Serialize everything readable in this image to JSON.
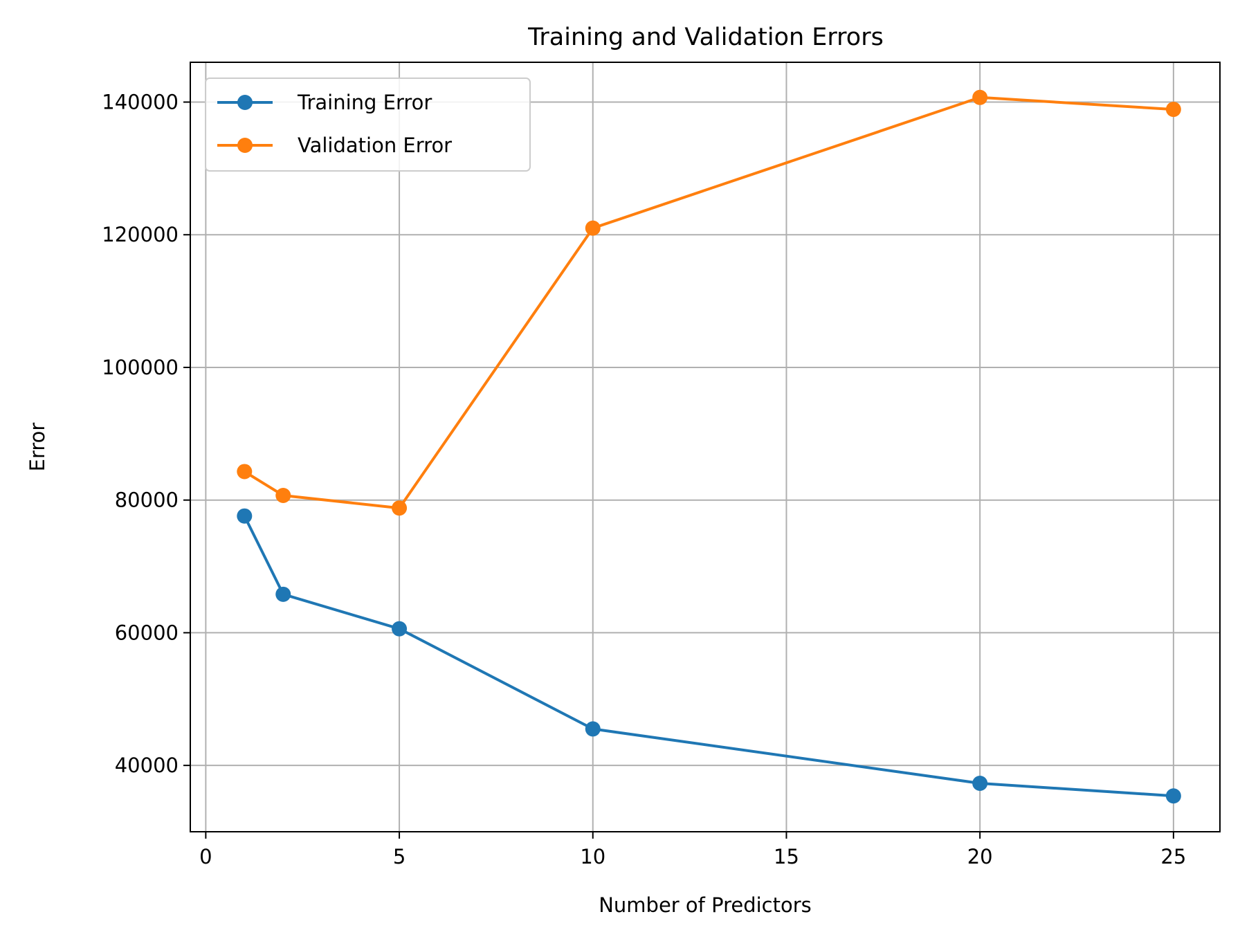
{
  "chart_data": {
    "type": "line",
    "title": "Training and Validation Errors",
    "xlabel": "Number of Predictors",
    "ylabel": "Error",
    "xlim": [
      -0.4,
      26.2
    ],
    "ylim": [
      30000,
      146000
    ],
    "xticks": [
      0,
      5,
      10,
      15,
      20,
      25
    ],
    "xtick_labels": [
      "0",
      "5",
      "10",
      "15",
      "20",
      "25"
    ],
    "yticks": [
      40000,
      60000,
      80000,
      100000,
      120000,
      140000
    ],
    "ytick_labels": [
      "40000",
      "60000",
      "80000",
      "100000",
      "120000",
      "140000"
    ],
    "grid": true,
    "legend_position": "top-left",
    "x": [
      1,
      2,
      5,
      10,
      20,
      25
    ],
    "series": [
      {
        "name": "Training Error",
        "color": "#1f77b4",
        "values": [
          77600,
          65800,
          60600,
          45500,
          37300,
          35400
        ]
      },
      {
        "name": "Validation Error",
        "color": "#ff7f0e",
        "values": [
          84300,
          80700,
          78800,
          121000,
          140700,
          138900
        ]
      }
    ]
  }
}
